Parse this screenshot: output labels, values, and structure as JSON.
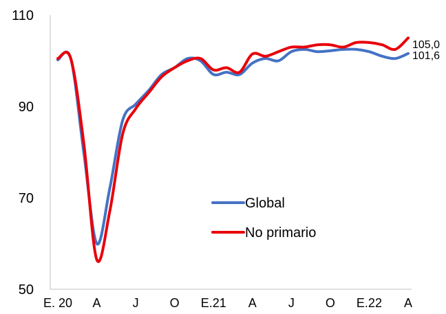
{
  "chart_data": {
    "type": "line",
    "title": "",
    "xlabel": "",
    "ylabel": "",
    "ylim": [
      50,
      110
    ],
    "yticks": [
      50,
      70,
      90,
      110
    ],
    "x_tick_labels": [
      "E. 20",
      "A",
      "J",
      "O",
      "E.21",
      "A",
      "J",
      "O",
      "E.22",
      "A"
    ],
    "x_tick_index": [
      0,
      3,
      6,
      9,
      12,
      15,
      18,
      21,
      24,
      27
    ],
    "grid": false,
    "legend_position": "center-right",
    "series": [
      {
        "name": "Global",
        "color": "#4472C4",
        "end_label": "101,6",
        "values": [
          100.2,
          100.5,
          80.0,
          60.0,
          72.0,
          87.0,
          90.5,
          93.5,
          97.0,
          98.5,
          100.5,
          100.0,
          97.0,
          97.5,
          97.0,
          99.5,
          100.5,
          100.0,
          102.0,
          102.5,
          102.0,
          102.2,
          102.5,
          102.5,
          102.0,
          101.0,
          100.5,
          101.6
        ]
      },
      {
        "name": "No primario",
        "color": "#E8000B",
        "end_label": "105,0",
        "values": [
          100.5,
          100.5,
          82.0,
          56.5,
          67.0,
          84.0,
          89.5,
          93.0,
          96.5,
          98.5,
          100.0,
          100.5,
          98.0,
          98.5,
          97.5,
          101.5,
          101.0,
          102.0,
          103.0,
          103.0,
          103.5,
          103.5,
          103.0,
          104.0,
          104.0,
          103.5,
          102.5,
          105.0
        ]
      }
    ]
  }
}
